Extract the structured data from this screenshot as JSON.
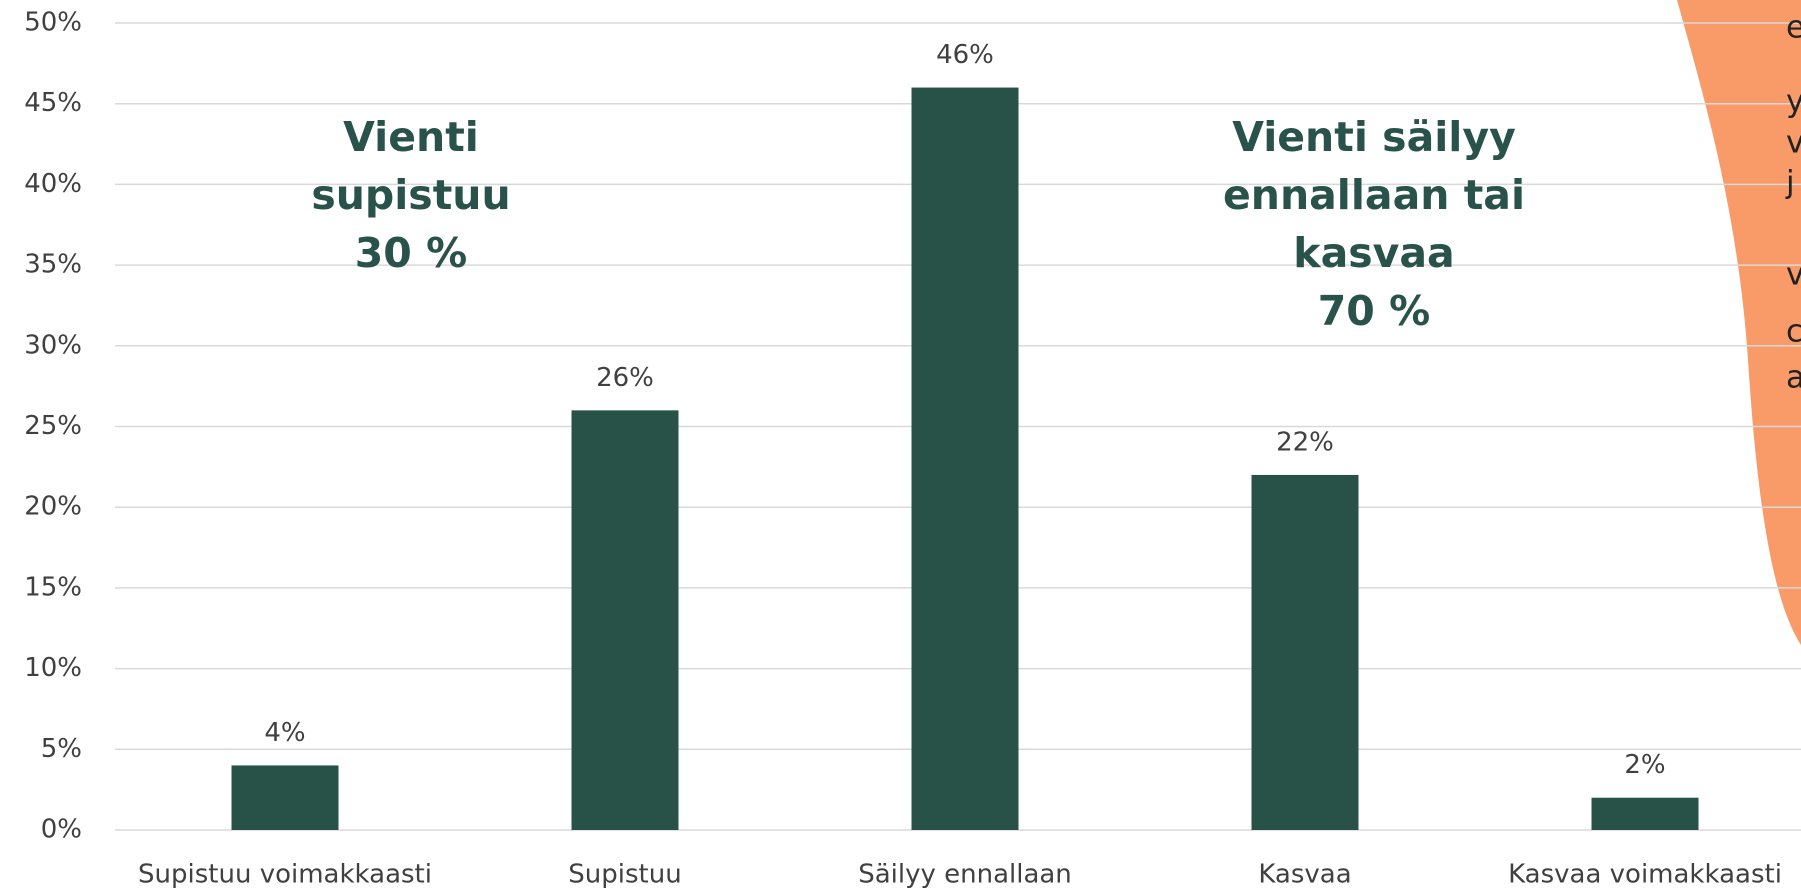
{
  "chart_data": {
    "type": "bar",
    "categories": [
      "Supistuu voimakkaasti",
      "Supistuu",
      "Säilyy ennallaan",
      "Kasvaa",
      "Kasvaa voimakkaasti"
    ],
    "values": [
      4,
      26,
      46,
      22,
      2
    ],
    "value_labels": [
      "4%",
      "26%",
      "46%",
      "22%",
      "2%"
    ],
    "color": "#285248",
    "ylim": [
      0,
      50
    ],
    "yticks": [
      {
        "value": 0,
        "label": "0%"
      },
      {
        "value": 5,
        "label": "5%"
      },
      {
        "value": 10,
        "label": "10%"
      },
      {
        "value": 15,
        "label": "15%"
      },
      {
        "value": 20,
        "label": "20%"
      },
      {
        "value": 25,
        "label": "25%"
      },
      {
        "value": 30,
        "label": "30%"
      },
      {
        "value": 35,
        "label": "35%"
      },
      {
        "value": 40,
        "label": "40%"
      },
      {
        "value": 45,
        "label": "45%"
      },
      {
        "value": 50,
        "label": "50%"
      }
    ],
    "grid": true,
    "annotations": [
      {
        "lines": [
          "Vienti",
          "supistuu",
          "30 %"
        ]
      },
      {
        "lines": [
          "Vienti säilyy",
          "ennallaan tai",
          "kasvaa",
          "70 %"
        ]
      }
    ],
    "side_text": [
      "e",
      "y",
      "v",
      "j",
      "v",
      "c",
      "a"
    ]
  }
}
